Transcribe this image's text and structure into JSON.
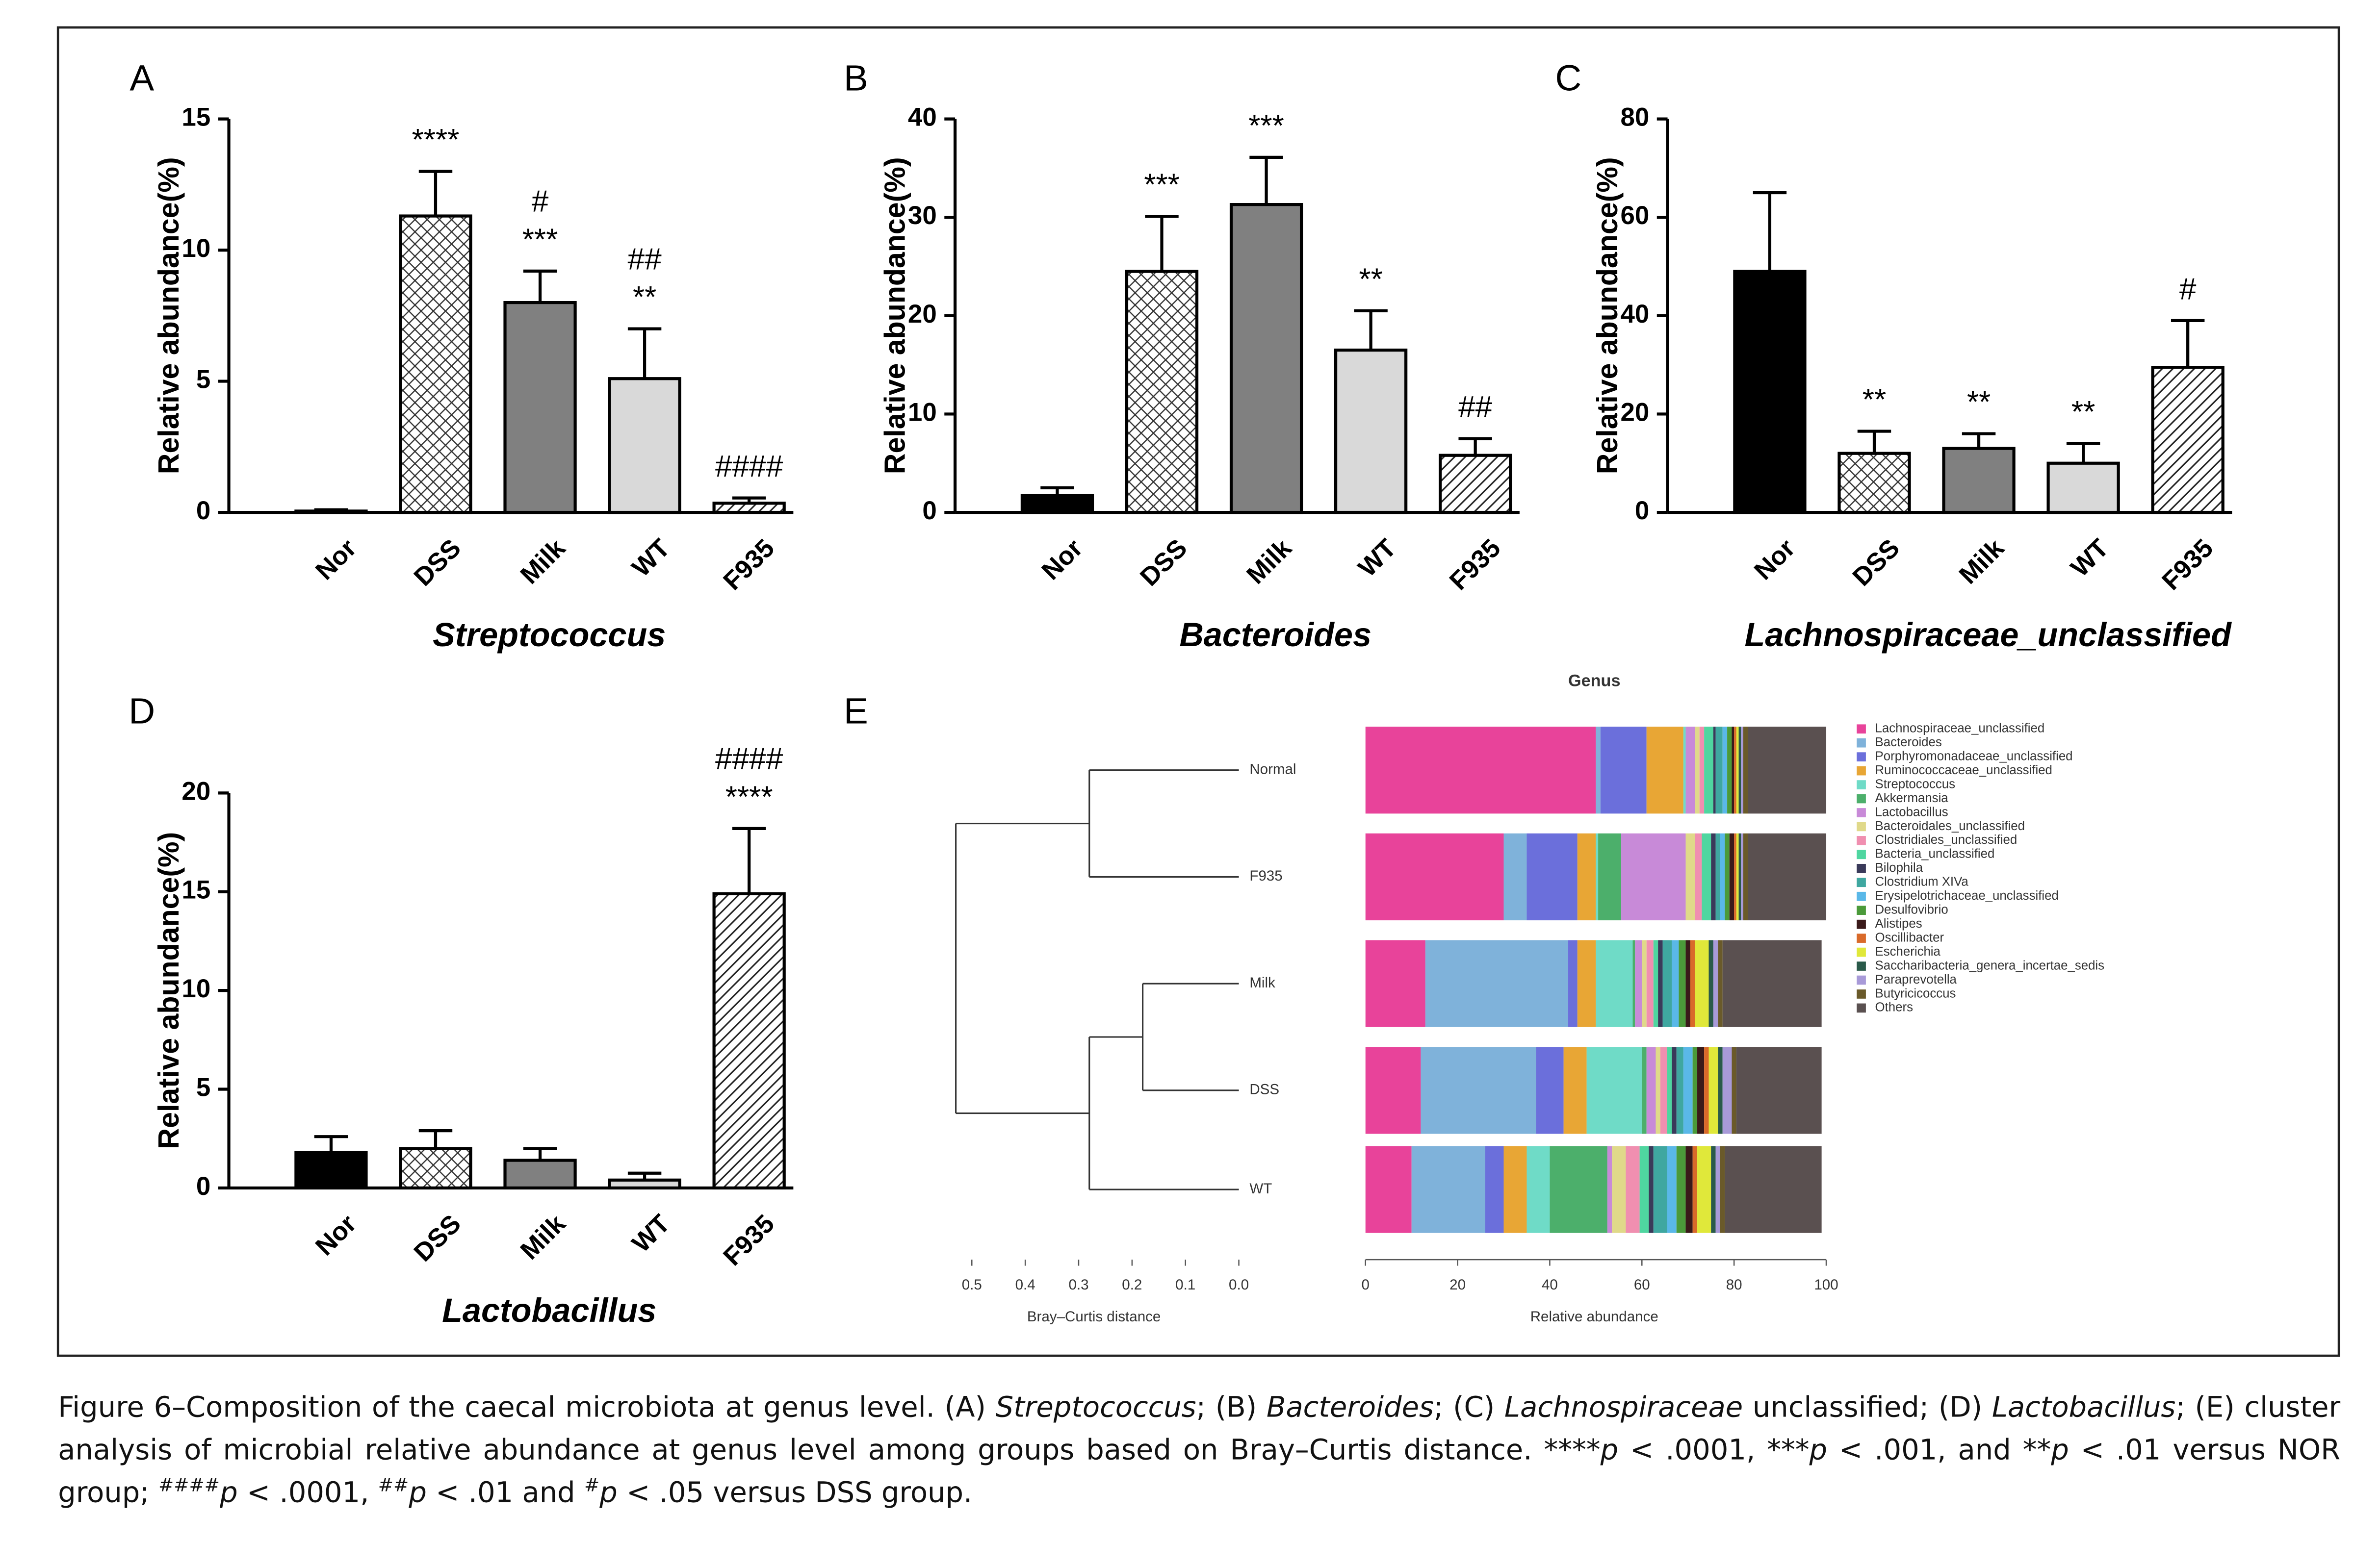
{
  "chart_data": [
    {
      "type": "bar",
      "label": "A",
      "ylabel": "Relative abundance(%)",
      "xlabel": "Streptococcus",
      "categories": [
        "Nor",
        "DSS",
        "Milk",
        "WT",
        "F935"
      ],
      "values": [
        0.05,
        11.3,
        8.0,
        5.1,
        0.35
      ],
      "errors": [
        0.05,
        1.7,
        1.2,
        1.9,
        0.2
      ],
      "annotations": [
        [],
        [
          "****"
        ],
        [
          "#",
          "***"
        ],
        [
          "##",
          "**"
        ],
        [
          "####"
        ]
      ],
      "colors": [
        "#000000",
        "#ffffff",
        "#808080",
        "#d9d9d9",
        "#ffffff"
      ],
      "patterns": [
        "solid",
        "crosshatch",
        "solid",
        "solid",
        "diagonal"
      ],
      "ylim": [
        0,
        15
      ],
      "yticks": [
        0,
        5,
        10,
        15
      ]
    },
    {
      "type": "bar",
      "label": "B",
      "ylabel": "Relative abundance(%)",
      "xlabel": "Bacteroides",
      "categories": [
        "Nor",
        "DSS",
        "Milk",
        "WT",
        "F935"
      ],
      "values": [
        1.7,
        24.5,
        31.3,
        16.5,
        5.8
      ],
      "errors": [
        0.8,
        5.6,
        4.8,
        4.0,
        1.7
      ],
      "annotations": [
        [],
        [
          "***"
        ],
        [
          "***"
        ],
        [
          "**"
        ],
        [
          "##"
        ]
      ],
      "colors": [
        "#000000",
        "#ffffff",
        "#808080",
        "#d9d9d9",
        "#ffffff"
      ],
      "patterns": [
        "solid",
        "crosshatch",
        "solid",
        "solid",
        "diagonal"
      ],
      "ylim": [
        0,
        40
      ],
      "yticks": [
        0,
        10,
        20,
        30,
        40
      ]
    },
    {
      "type": "bar",
      "label": "C",
      "ylabel": "Relative abundance(%)",
      "xlabel": "Lachnospiraceae_unclassified",
      "categories": [
        "Nor",
        "DSS",
        "Milk",
        "WT",
        "F935"
      ],
      "values": [
        49,
        12,
        13,
        10,
        29.5
      ],
      "errors": [
        16,
        4.5,
        3,
        4,
        9.5
      ],
      "annotations": [
        [],
        [
          "**"
        ],
        [
          "**"
        ],
        [
          "**"
        ],
        [
          "#"
        ]
      ],
      "colors": [
        "#000000",
        "#ffffff",
        "#808080",
        "#d9d9d9",
        "#ffffff"
      ],
      "patterns": [
        "solid",
        "crosshatch",
        "solid",
        "solid",
        "diagonal"
      ],
      "ylim": [
        0,
        80
      ],
      "yticks": [
        0,
        20,
        40,
        60,
        80
      ]
    },
    {
      "type": "bar",
      "label": "D",
      "ylabel": "Relative abundance(%)",
      "xlabel": "Lactobacillus",
      "categories": [
        "Nor",
        "DSS",
        "Milk",
        "WT",
        "F935"
      ],
      "values": [
        1.8,
        2.0,
        1.4,
        0.4,
        14.9
      ],
      "errors": [
        0.8,
        0.9,
        0.6,
        0.35,
        3.3
      ],
      "annotations": [
        [],
        [],
        [],
        [],
        [
          "####",
          "****"
        ]
      ],
      "colors": [
        "#000000",
        "#ffffff",
        "#808080",
        "#d9d9d9",
        "#ffffff"
      ],
      "patterns": [
        "solid",
        "crosshatch",
        "solid",
        "solid",
        "diagonal"
      ],
      "ylim": [
        0,
        20
      ],
      "yticks": [
        0,
        5,
        10,
        15,
        20
      ]
    },
    {
      "type": "dendrogram",
      "label": "E",
      "xlabel": "Bray–Curtis distance",
      "leaves": [
        "Normal",
        "F935",
        "Milk",
        "DSS",
        "WT"
      ],
      "merges": [
        {
          "items": [
            0,
            1
          ],
          "height": 0.28
        },
        {
          "items": [
            2,
            3
          ],
          "height": 0.18
        },
        {
          "items": [
            6,
            4
          ],
          "height": 0.28
        },
        {
          "items": [
            5,
            7
          ],
          "height": 0.53
        }
      ],
      "xlim": [
        0.5,
        0
      ],
      "xticks": [
        0.5,
        0.4,
        0.3,
        0.2,
        0.1,
        {
          "value": 0,
          "label": "0.0"
        }
      ]
    },
    {
      "type": "stacked-barh",
      "title": "Genus",
      "xlabel": "Relative abundance",
      "xlim": [
        0,
        100
      ],
      "xticks": [
        0,
        20,
        40,
        60,
        80,
        100
      ],
      "series": [
        {
          "name": "Lachnospiraceae_unclassified",
          "color": "#e8439a",
          "values": [
            50,
            30,
            13,
            12,
            10
          ]
        },
        {
          "name": "Bacteroides",
          "color": "#7fb2da",
          "values": [
            1,
            5,
            31,
            25,
            16
          ]
        },
        {
          "name": "Porphyromonadaceae_unclassified",
          "color": "#6b6fdb",
          "values": [
            10,
            11,
            2,
            6,
            4
          ]
        },
        {
          "name": "Ruminococcaceae_unclassified",
          "color": "#e8a635",
          "values": [
            8,
            4,
            4,
            5,
            5
          ]
        },
        {
          "name": "Streptococcus",
          "color": "#6fdbc7",
          "values": [
            0.5,
            0.5,
            8,
            12,
            5
          ]
        },
        {
          "name": "Akkermansia",
          "color": "#4caf6b",
          "values": [
            0,
            5,
            0.5,
            1,
            12.5
          ]
        },
        {
          "name": "Lactobacillus",
          "color": "#c88ad8",
          "values": [
            2,
            14,
            1.5,
            2,
            1
          ]
        },
        {
          "name": "Bacteroidales_unclassified",
          "color": "#e0d98a",
          "values": [
            1,
            2,
            1,
            1,
            3
          ]
        },
        {
          "name": "Clostridiales_unclassified",
          "color": "#f08fb0",
          "values": [
            1,
            1.5,
            1.5,
            1.5,
            3
          ]
        },
        {
          "name": "Bacteria_unclassified",
          "color": "#4fd6a0",
          "values": [
            2,
            2,
            1,
            1,
            2
          ]
        },
        {
          "name": "Bilophila",
          "color": "#3a3a5a",
          "values": [
            0.5,
            1,
            1,
            1,
            1
          ]
        },
        {
          "name": "Clostridium XIVa",
          "color": "#3fa7a0",
          "values": [
            1.5,
            1,
            2,
            1.5,
            3
          ]
        },
        {
          "name": "Erysipelotrichaceae_unclassified",
          "color": "#5ab8e8",
          "values": [
            1,
            1,
            1.5,
            2,
            2
          ]
        },
        {
          "name": "Desulfovibrio",
          "color": "#4b9a3a",
          "values": [
            1,
            1,
            1.5,
            1,
            2
          ]
        },
        {
          "name": "Alistipes",
          "color": "#3a1a1a",
          "values": [
            0.5,
            1,
            1,
            1.5,
            1.5
          ]
        },
        {
          "name": "Oscillibacter",
          "color": "#d96a2a",
          "values": [
            0.5,
            0.5,
            1,
            1,
            1
          ]
        },
        {
          "name": "Escherichia",
          "color": "#e0e83a",
          "values": [
            0.5,
            0.5,
            3,
            2,
            3
          ]
        },
        {
          "name": "Saccharibacteria_genera_incertae_sedis",
          "color": "#2a5a4a",
          "values": [
            0.5,
            0.5,
            1,
            1,
            1
          ]
        },
        {
          "name": "Paraprevotella",
          "color": "#a89ad8",
          "values": [
            0.5,
            0.5,
            1,
            2,
            1
          ]
        },
        {
          "name": "Butyricicoccus",
          "color": "#6a5a2a",
          "values": [
            1,
            1,
            1,
            1,
            1
          ]
        },
        {
          "name": "Others",
          "color": "#5a5050",
          "values": [
            17,
            17,
            21.5,
            18.5,
            21
          ]
        }
      ]
    }
  ],
  "caption": [
    "Figure 6–Composition of the caecal microbiota at genus level. (A) ",
    "Streptococcus",
    "; (B) ",
    "Bacteroides",
    "; (C) ",
    "Lachnospiraceae",
    " unclassified; (D) ",
    "Lactobacillus",
    "; (E) cluster analysis of microbial relative abundance at genus level among groups based on Bray–Curtis distance. ****",
    "p",
    " < .0001, ***",
    "p",
    " < .001, and **",
    "p",
    " < .01 versus NOR group; ",
    "####",
    "p",
    " < .0001, ",
    "##",
    "p",
    " < .01 and ",
    "#",
    "p",
    " < .05 versus DSS group."
  ]
}
